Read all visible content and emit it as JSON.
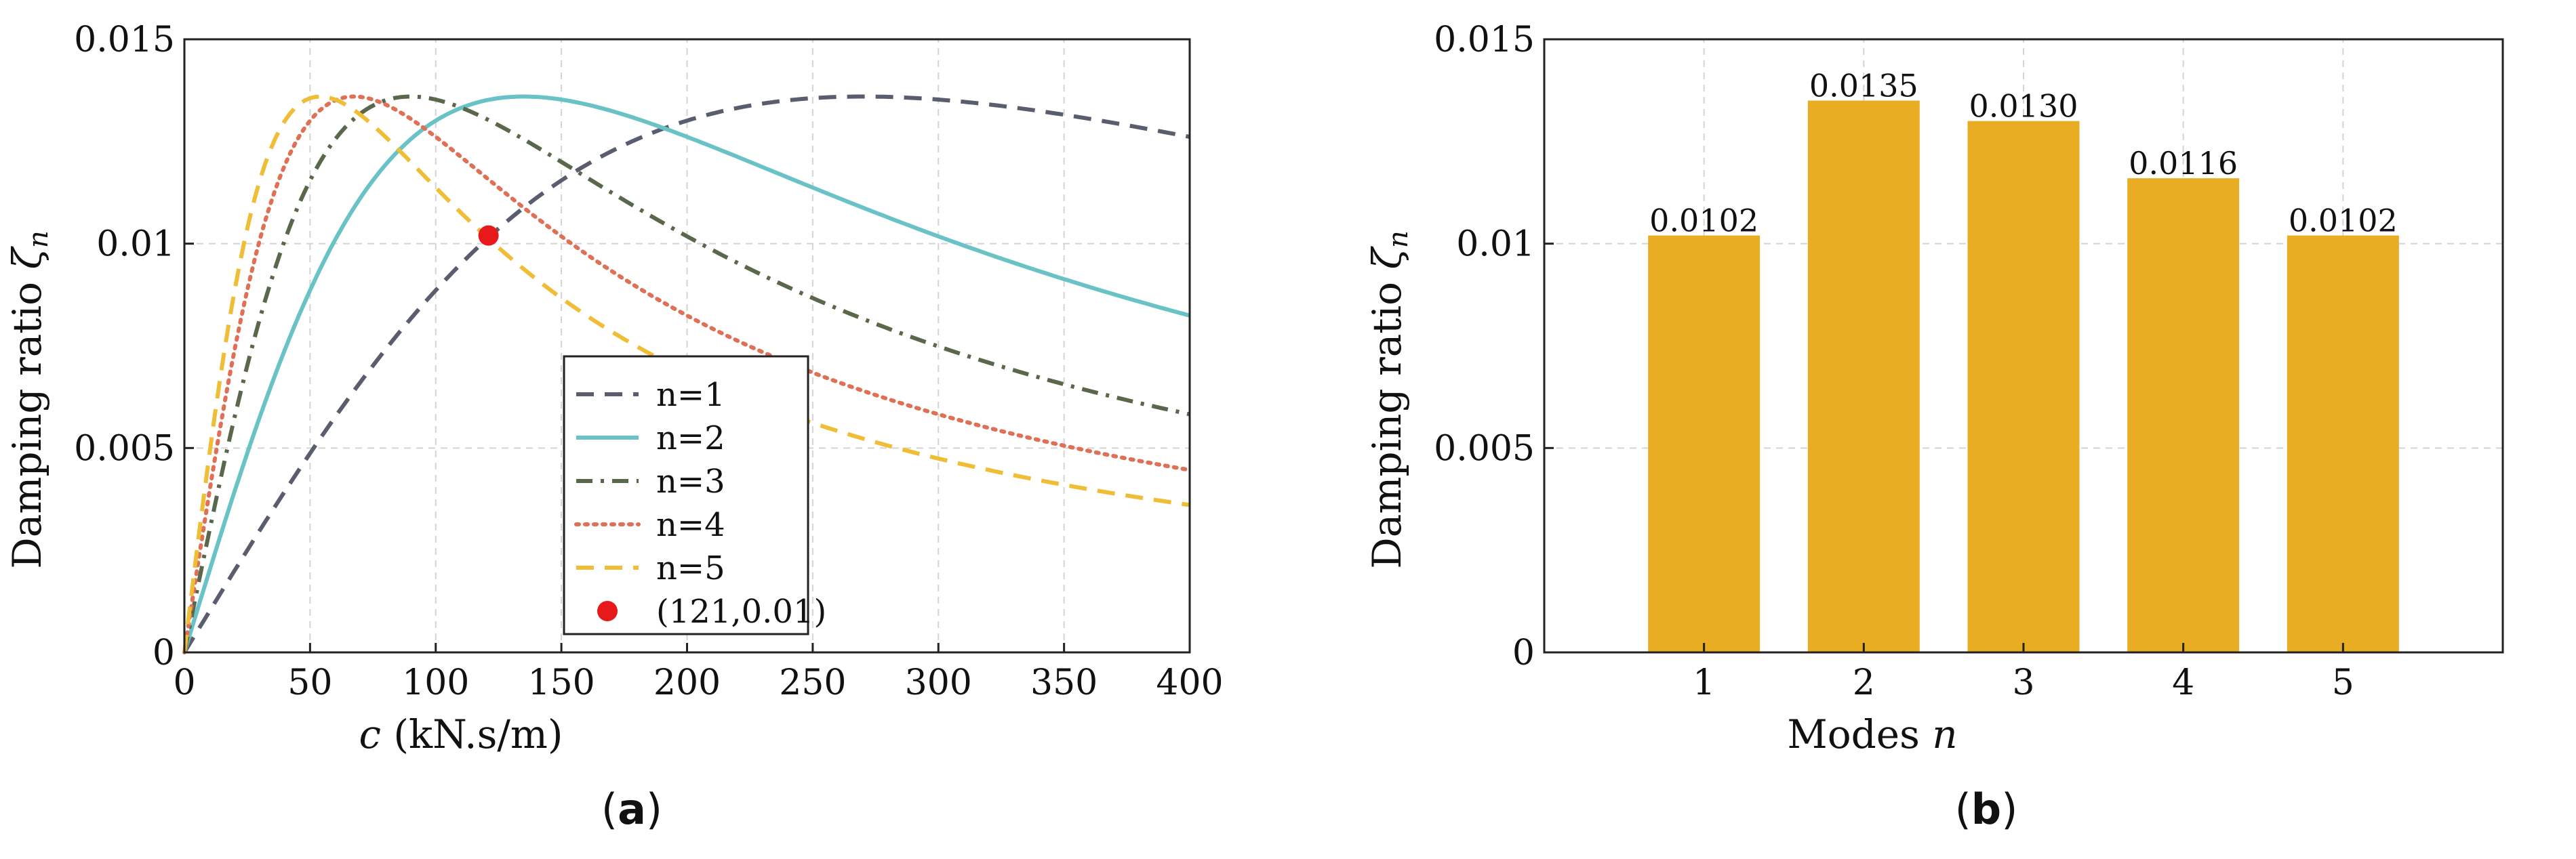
{
  "panels": {
    "a": {
      "label_open": "(",
      "label_letter": "a",
      "label_close": ")"
    },
    "b": {
      "label_open": "(",
      "label_letter": "b",
      "label_close": ")"
    }
  },
  "colors": {
    "n1": "#5a5d6e",
    "n2": "#69c3c6",
    "n3": "#59684a",
    "n4": "#e07055",
    "n5": "#efbd36",
    "marker": "#e8191b",
    "bar": "#e9ad24",
    "grid": "#d4d4d4",
    "axis": "#222222"
  },
  "chart_data": [
    {
      "id": "a",
      "type": "line",
      "title": "",
      "xlabel_var": "c",
      "xlabel_units": " (kN.s/m)",
      "ylabel_text": "Damping ratio ",
      "ylabel_var": "ζ",
      "ylabel_sub": "n",
      "xlim": [
        0,
        400
      ],
      "ylim": [
        0,
        0.015
      ],
      "xticks": [
        0,
        50,
        100,
        150,
        200,
        250,
        300,
        350,
        400
      ],
      "yticks": [
        0,
        0.005,
        0.01,
        0.015
      ],
      "ytick_labels": [
        "0",
        "0.005",
        "0.01",
        "0.015"
      ],
      "grid": true,
      "legend_position": "center-right",
      "series": [
        {
          "name": "n=1",
          "peak_c": 270,
          "peak_zeta": 0.0136,
          "style": "dashed",
          "color_key": "n1"
        },
        {
          "name": "n=2",
          "peak_c": 135,
          "peak_zeta": 0.0136,
          "style": "solid",
          "color_key": "n2"
        },
        {
          "name": "n=3",
          "peak_c": 90,
          "peak_zeta": 0.0136,
          "style": "dashdot",
          "color_key": "n3"
        },
        {
          "name": "n=4",
          "peak_c": 67.5,
          "peak_zeta": 0.0136,
          "style": "dotted",
          "color_key": "n4"
        },
        {
          "name": "n=5",
          "peak_c": 54,
          "peak_zeta": 0.0136,
          "style": "dashed",
          "color_key": "n5"
        }
      ],
      "points": [
        {
          "name": "(121,0.01)",
          "x": 121,
          "y": 0.0102,
          "color_key": "marker"
        }
      ]
    },
    {
      "id": "b",
      "type": "bar",
      "title": "",
      "xlabel_text": "Modes ",
      "xlabel_var": "n",
      "ylabel_text": "Damping ratio ",
      "ylabel_var": "ζ",
      "ylabel_sub": "n",
      "categories": [
        "1",
        "2",
        "3",
        "4",
        "5"
      ],
      "values": [
        0.0102,
        0.0135,
        0.013,
        0.0116,
        0.0102
      ],
      "value_labels": [
        "0.0102",
        "0.0135",
        "0.0130",
        "0.0116",
        "0.0102"
      ],
      "xlim": [
        0,
        6
      ],
      "ylim": [
        0,
        0.015
      ],
      "yticks": [
        0,
        0.005,
        0.01,
        0.015
      ],
      "ytick_labels": [
        "0",
        "0.005",
        "0.01",
        "0.015"
      ],
      "grid": true
    }
  ]
}
